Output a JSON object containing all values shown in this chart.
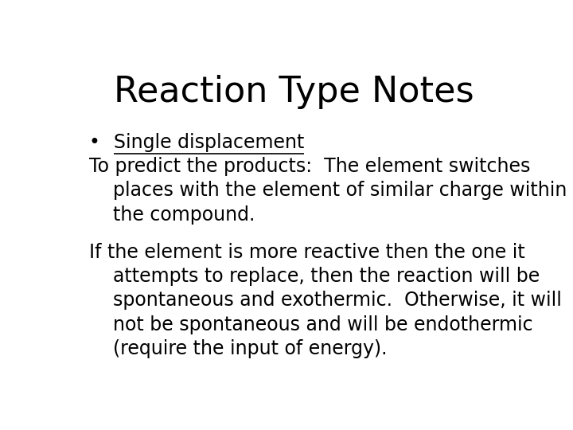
{
  "title": "Reaction Type Notes",
  "title_fontsize": 32,
  "title_font": "DejaVu Sans",
  "background_color": "#ffffff",
  "text_color": "#000000",
  "bullet_symbol": "•  ",
  "bullet_text": "Single displacement",
  "line1": "To predict the products:  The element switches",
  "line2": "    places with the element of similar charge within",
  "line3": "    the compound.",
  "line4": "",
  "line5": "If the element is more reactive then the one it",
  "line6": "    attempts to replace, then the reaction will be",
  "line7": "    spontaneous and exothermic.  Otherwise, it will",
  "line8": "    not be spontaneous and will be endothermic",
  "line9": "    (require the input of energy).",
  "body_fontsize": 17,
  "body_font": "DejaVu Sans"
}
